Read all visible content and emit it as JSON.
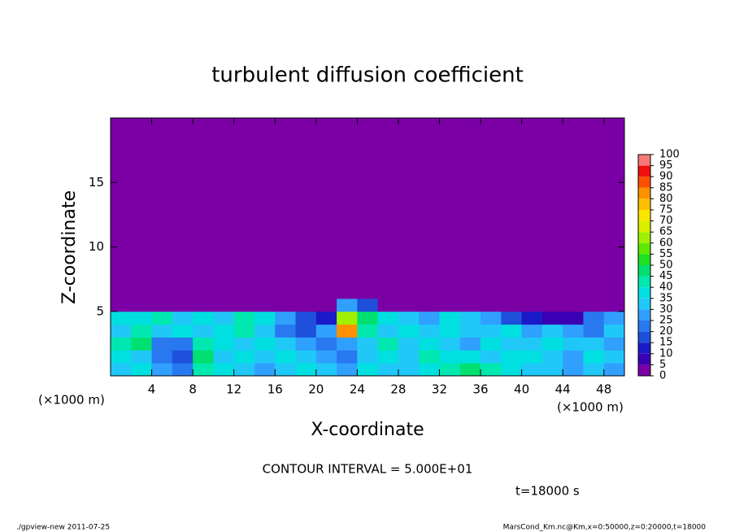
{
  "chart_data": {
    "type": "heatmap",
    "title": "turbulent diffusion coefficient",
    "xlabel": "X-coordinate",
    "ylabel": "Z-coordinate",
    "xunit": "(×1000 m)",
    "yunit": "(×1000 m)",
    "annotation": "CONTOUR INTERVAL = 5.000E+01",
    "time_label": "t=18000 s",
    "footer_left": "./gpview-new  2011-07-25",
    "footer_right": "MarsCond_Km.nc@Km,x=0:50000,z=0:20000,t=18000",
    "xlim": [
      0,
      50
    ],
    "xticks": [
      4,
      8,
      12,
      16,
      20,
      24,
      28,
      32,
      36,
      40,
      44,
      48
    ],
    "ylim": [
      0,
      20
    ],
    "yticks": [
      5,
      10,
      15
    ],
    "x": [
      1,
      3,
      5,
      7,
      9,
      11,
      13,
      15,
      17,
      19,
      21,
      23,
      25,
      27,
      29,
      31,
      33,
      35,
      37,
      39,
      41,
      43,
      45,
      47,
      49
    ],
    "z": [
      0.5,
      1.5,
      2.5,
      3.5,
      4.5,
      5.5,
      6.5,
      7.5,
      8.5,
      9.5,
      10.5,
      11.5,
      12.5,
      13.5,
      14.5,
      15.5,
      16.5,
      17.5,
      18.5,
      19.5
    ],
    "values": [
      [
        30,
        35,
        25,
        20,
        40,
        35,
        30,
        25,
        30,
        35,
        30,
        25,
        35,
        30,
        30,
        35,
        40,
        45,
        40,
        35,
        30,
        30,
        25,
        30,
        25
      ],
      [
        35,
        30,
        20,
        15,
        45,
        30,
        35,
        30,
        35,
        30,
        25,
        20,
        30,
        35,
        30,
        40,
        35,
        35,
        30,
        35,
        35,
        30,
        25,
        35,
        30
      ],
      [
        40,
        45,
        20,
        20,
        40,
        35,
        30,
        35,
        30,
        25,
        20,
        25,
        30,
        40,
        30,
        35,
        30,
        25,
        35,
        30,
        30,
        35,
        30,
        30,
        25
      ],
      [
        30,
        40,
        30,
        35,
        30,
        35,
        40,
        30,
        20,
        15,
        25,
        80,
        40,
        30,
        35,
        30,
        35,
        30,
        30,
        35,
        25,
        30,
        25,
        20,
        30
      ],
      [
        35,
        35,
        40,
        30,
        35,
        30,
        40,
        35,
        25,
        15,
        10,
        60,
        45,
        35,
        30,
        25,
        35,
        30,
        25,
        15,
        10,
        5,
        5,
        20,
        25
      ],
      [
        0,
        0,
        0,
        0,
        0,
        0,
        0,
        0,
        0,
        0,
        0,
        25,
        15,
        0,
        0,
        0,
        0,
        0,
        0,
        0,
        0,
        0,
        0,
        0,
        0
      ],
      [
        0,
        0,
        0,
        0,
        0,
        0,
        0,
        0,
        0,
        0,
        0,
        0,
        0,
        0,
        0,
        0,
        0,
        0,
        0,
        0,
        0,
        0,
        0,
        0,
        0
      ],
      [
        0,
        0,
        0,
        0,
        0,
        0,
        0,
        0,
        0,
        0,
        0,
        0,
        0,
        0,
        0,
        0,
        0,
        0,
        0,
        0,
        0,
        0,
        0,
        0,
        0
      ],
      [
        0,
        0,
        0,
        0,
        0,
        0,
        0,
        0,
        0,
        0,
        0,
        0,
        0,
        0,
        0,
        0,
        0,
        0,
        0,
        0,
        0,
        0,
        0,
        0,
        0
      ],
      [
        0,
        0,
        0,
        0,
        0,
        0,
        0,
        0,
        0,
        0,
        0,
        0,
        0,
        0,
        0,
        0,
        0,
        0,
        0,
        0,
        0,
        0,
        0,
        0,
        0
      ],
      [
        0,
        0,
        0,
        0,
        0,
        0,
        0,
        0,
        0,
        0,
        0,
        0,
        0,
        0,
        0,
        0,
        0,
        0,
        0,
        0,
        0,
        0,
        0,
        0,
        0
      ],
      [
        0,
        0,
        0,
        0,
        0,
        0,
        0,
        0,
        0,
        0,
        0,
        0,
        0,
        0,
        0,
        0,
        0,
        0,
        0,
        0,
        0,
        0,
        0,
        0,
        0
      ],
      [
        0,
        0,
        0,
        0,
        0,
        0,
        0,
        0,
        0,
        0,
        0,
        0,
        0,
        0,
        0,
        0,
        0,
        0,
        0,
        0,
        0,
        0,
        0,
        0,
        0
      ],
      [
        0,
        0,
        0,
        0,
        0,
        0,
        0,
        0,
        0,
        0,
        0,
        0,
        0,
        0,
        0,
        0,
        0,
        0,
        0,
        0,
        0,
        0,
        0,
        0,
        0
      ],
      [
        0,
        0,
        0,
        0,
        0,
        0,
        0,
        0,
        0,
        0,
        0,
        0,
        0,
        0,
        0,
        0,
        0,
        0,
        0,
        0,
        0,
        0,
        0,
        0,
        0
      ],
      [
        0,
        0,
        0,
        0,
        0,
        0,
        0,
        0,
        0,
        0,
        0,
        0,
        0,
        0,
        0,
        0,
        0,
        0,
        0,
        0,
        0,
        0,
        0,
        0,
        0
      ],
      [
        0,
        0,
        0,
        0,
        0,
        0,
        0,
        0,
        0,
        0,
        0,
        0,
        0,
        0,
        0,
        0,
        0,
        0,
        0,
        0,
        0,
        0,
        0,
        0,
        0
      ],
      [
        0,
        0,
        0,
        0,
        0,
        0,
        0,
        0,
        0,
        0,
        0,
        0,
        0,
        0,
        0,
        0,
        0,
        0,
        0,
        0,
        0,
        0,
        0,
        0,
        0
      ],
      [
        0,
        0,
        0,
        0,
        0,
        0,
        0,
        0,
        0,
        0,
        0,
        0,
        0,
        0,
        0,
        0,
        0,
        0,
        0,
        0,
        0,
        0,
        0,
        0,
        0
      ],
      [
        0,
        0,
        0,
        0,
        0,
        0,
        0,
        0,
        0,
        0,
        0,
        0,
        0,
        0,
        0,
        0,
        0,
        0,
        0,
        0,
        0,
        0,
        0,
        0,
        0
      ]
    ],
    "colorbar": {
      "levels": [
        0,
        5,
        10,
        15,
        20,
        25,
        30,
        35,
        40,
        45,
        50,
        55,
        60,
        65,
        70,
        75,
        80,
        85,
        90,
        95,
        100
      ],
      "colors": [
        "#7a00a6",
        "#3a00b4",
        "#1a1ac8",
        "#1e50dc",
        "#2878f0",
        "#30a0ff",
        "#20c8f8",
        "#00e0e0",
        "#00e8b0",
        "#00e070",
        "#20e020",
        "#60e800",
        "#a0f000",
        "#d8f000",
        "#f8e800",
        "#ffc000",
        "#ff9000",
        "#ff5000",
        "#f01010",
        "#f87878"
      ]
    }
  }
}
